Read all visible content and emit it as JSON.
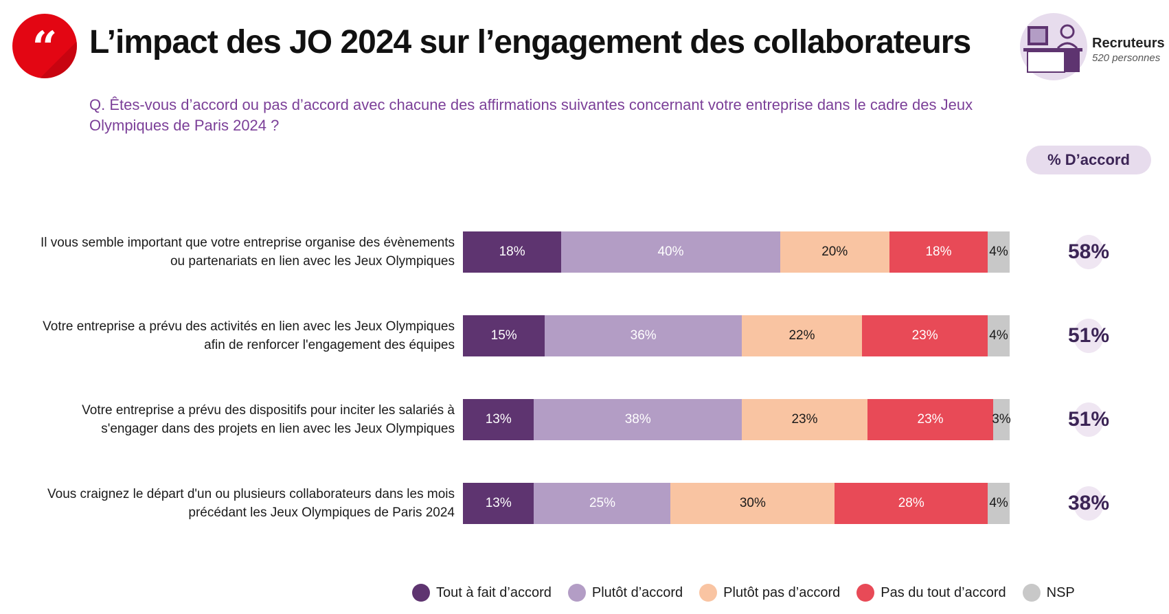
{
  "header": {
    "title": "L’impact des JO 2024 sur l’engagement des collaborateurs",
    "question": "Q. Êtes-vous d’accord ou pas d’accord avec chacune des affirmations suivantes concernant votre entreprise dans le cadre des Jeux Olympiques de Paris 2024 ?",
    "logo_icon": "quote-icon",
    "respondent_icon": "recruiter-desk-icon",
    "respondent_label": "Recruteurs",
    "respondent_count": "520 personnes",
    "agree_header": "% D’accord"
  },
  "colors": {
    "tout_a_fait": "#5e3470",
    "plutot": "#b39dc5",
    "plutot_pas": "#f9c4a2",
    "pas_du_tout": "#e84a57",
    "nsp": "#c8c8c8",
    "accent_red": "#e30613",
    "question_purple": "#7b3f98"
  },
  "chart_data": {
    "type": "bar",
    "orientation": "horizontal",
    "stacked": true,
    "unit": "%",
    "categories": [
      "Il vous semble important que votre entreprise organise des évènements ou partenariats en lien avec les Jeux Olympiques",
      "Votre entreprise a prévu des activités en lien avec les Jeux Olympiques afin de renforcer l'engagement des équipes",
      "Votre entreprise a prévu des dispositifs pour inciter les salariés à s'engager dans des projets en lien avec les Jeux Olympiques",
      "Vous craignez le départ d'un ou plusieurs collaborateurs dans les mois précédant les Jeux Olympiques de Paris 2024"
    ],
    "series": [
      {
        "name": "Tout à fait d’accord",
        "color": "#5e3470",
        "text_color": "#ffffff",
        "values": [
          18,
          15,
          13,
          13
        ],
        "labels": [
          "18%",
          "15%",
          "13%",
          "13%"
        ]
      },
      {
        "name": "Plutôt d’accord",
        "color": "#b39dc5",
        "text_color": "#ffffff",
        "values": [
          40,
          36,
          38,
          25
        ],
        "labels": [
          "40%",
          "36%",
          "38%",
          "25%"
        ]
      },
      {
        "name": "Plutôt pas d’accord",
        "color": "#f9c4a2",
        "text_color": "#1a1a1a",
        "values": [
          20,
          22,
          23,
          30
        ],
        "labels": [
          "20%",
          "22%",
          "23%",
          "30%"
        ]
      },
      {
        "name": "Pas du tout d’accord",
        "color": "#e84a57",
        "text_color": "#ffffff",
        "values": [
          18,
          23,
          23,
          28
        ],
        "labels": [
          "18%",
          "23%",
          "23%",
          "28%"
        ]
      },
      {
        "name": "NSP",
        "color": "#c8c8c8",
        "text_color": "#1a1a1a",
        "values": [
          4,
          4,
          3,
          4
        ],
        "labels": [
          "4%",
          "4%",
          "3%",
          "4%"
        ]
      }
    ],
    "agree_totals": [
      58,
      51,
      51,
      38
    ],
    "agree_labels": [
      "58%",
      "51%",
      "51%",
      "38%"
    ],
    "legend_position": "bottom",
    "grid": false
  }
}
